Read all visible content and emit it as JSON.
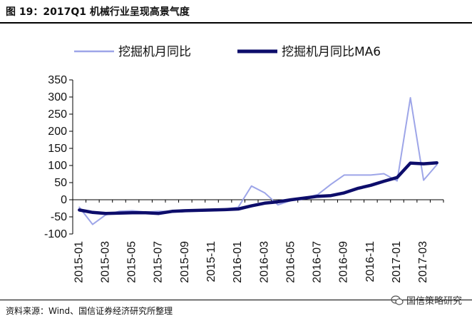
{
  "figure": {
    "title": "图 19：2017Q1 机械行业呈现高景气度",
    "source": "资料来源：Wind、国信证券经济研究所整理",
    "watermark": "国信策略研究"
  },
  "chart_data": {
    "type": "line",
    "title": "",
    "xlabel": "",
    "ylabel": "",
    "ylim": [
      -100,
      350
    ],
    "yticks": [
      -100,
      -50,
      0,
      50,
      100,
      150,
      200,
      250,
      300,
      350
    ],
    "ytick_labels": [
      "-100",
      "-50",
      "0",
      "50",
      "100",
      "150",
      "200",
      "250",
      "300",
      "350"
    ],
    "grid": false,
    "legend_position": "top",
    "x": [
      "2015-01",
      "2015-02",
      "2015-03",
      "2015-04",
      "2015-05",
      "2015-06",
      "2015-07",
      "2015-08",
      "2015-09",
      "2015-10",
      "2015-11",
      "2015-12",
      "2016-01",
      "2016-02",
      "2016-03",
      "2016-04",
      "2016-05",
      "2016-06",
      "2016-07",
      "2016-08",
      "2016-09",
      "2016-10",
      "2016-11",
      "2016-12",
      "2017-01",
      "2017-02",
      "2017-03",
      "2017-04"
    ],
    "xtick_labels": [
      "2015-01",
      "2015-03",
      "2015-05",
      "2015-07",
      "2015-09",
      "2015-11",
      "2016-01",
      "2016-03",
      "2016-05",
      "2016-07",
      "2016-09",
      "2016-11",
      "2017-01",
      "2017-03"
    ],
    "series": [
      {
        "name": "挖掘机月同比",
        "color": "#9da5e8",
        "width": "thin",
        "values": [
          -22,
          -72,
          -44,
          -34,
          -32,
          -36,
          -34,
          -34,
          -31,
          -30,
          -28,
          -27,
          -22,
          40,
          20,
          -15,
          -2,
          5,
          15,
          45,
          72,
          72,
          72,
          76,
          55,
          298,
          57,
          102
        ]
      },
      {
        "name": "挖掘机月同比MA6",
        "color": "#0d0d6b",
        "width": "thick",
        "values": [
          -30,
          -37,
          -40,
          -39,
          -38,
          -38,
          -40,
          -34,
          -32,
          -31,
          -30,
          -29,
          -27,
          -18,
          -10,
          -6,
          0,
          5,
          10,
          12,
          20,
          33,
          42,
          54,
          65,
          107,
          105,
          108
        ]
      }
    ]
  }
}
